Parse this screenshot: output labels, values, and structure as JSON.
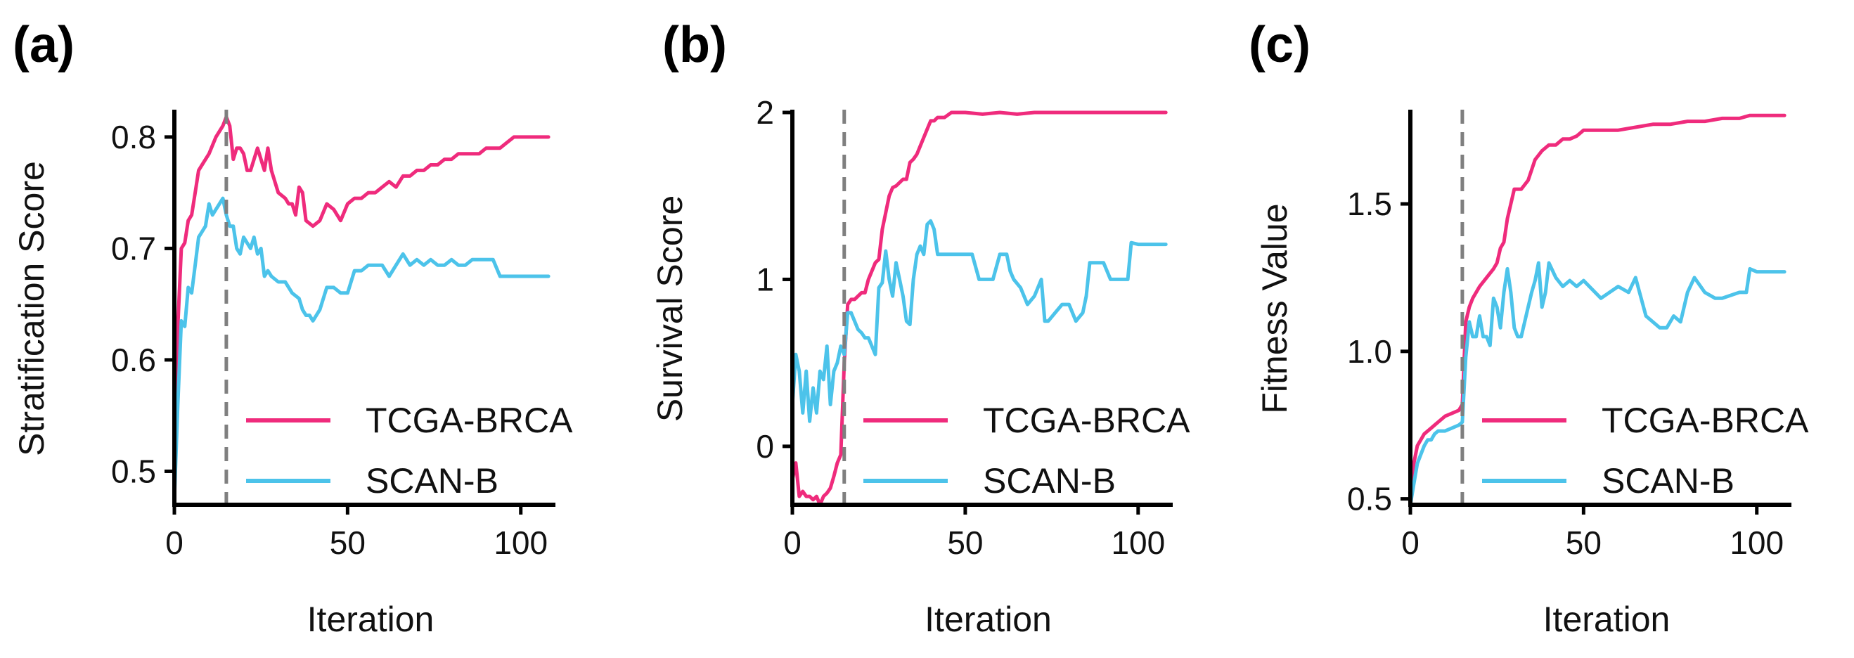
{
  "colors": {
    "tcga": "#ef2b7c",
    "scan": "#4cc3ea",
    "marker": "#7f7f7f"
  },
  "chart_data": [
    {
      "type": "line",
      "panel_label": "(a)",
      "title": "",
      "xlabel": "Iteration",
      "ylabel": "Stratification Score",
      "xlim": [
        0,
        110
      ],
      "ylim": [
        0.47,
        0.822
      ],
      "x_ticks": [
        0,
        50,
        100
      ],
      "y_ticks": [
        0.5,
        0.6,
        0.7,
        0.8
      ],
      "y_tick_labels": [
        "0.5",
        "0.6",
        "0.7",
        "0.8"
      ],
      "vertical_marker": 15,
      "legend": {
        "position": "bottom-right",
        "entries": [
          "TCGA-BRCA",
          "SCAN-B"
        ]
      },
      "series": [
        {
          "name": "TCGA-BRCA",
          "x": [
            0,
            1,
            2,
            3,
            4,
            5,
            6,
            7,
            8,
            10,
            12,
            14,
            15,
            16,
            17,
            18,
            19,
            20,
            21,
            22,
            23,
            24,
            25,
            26,
            27,
            28,
            30,
            32,
            33,
            34,
            35,
            36,
            37,
            38,
            40,
            42,
            44,
            46,
            48,
            50,
            52,
            54,
            56,
            58,
            60,
            62,
            64,
            66,
            68,
            70,
            72,
            74,
            76,
            78,
            80,
            82,
            84,
            86,
            88,
            90,
            92,
            94,
            96,
            98,
            100,
            103,
            108
          ],
          "values": [
            0.54,
            0.63,
            0.7,
            0.705,
            0.725,
            0.73,
            0.75,
            0.77,
            0.775,
            0.785,
            0.8,
            0.81,
            0.818,
            0.81,
            0.78,
            0.79,
            0.79,
            0.785,
            0.77,
            0.77,
            0.78,
            0.79,
            0.78,
            0.77,
            0.79,
            0.77,
            0.75,
            0.745,
            0.74,
            0.74,
            0.73,
            0.755,
            0.75,
            0.725,
            0.72,
            0.725,
            0.74,
            0.735,
            0.725,
            0.74,
            0.745,
            0.745,
            0.75,
            0.75,
            0.755,
            0.76,
            0.755,
            0.765,
            0.765,
            0.77,
            0.77,
            0.775,
            0.775,
            0.78,
            0.78,
            0.785,
            0.785,
            0.785,
            0.785,
            0.79,
            0.79,
            0.79,
            0.795,
            0.8,
            0.8,
            0.8,
            0.8
          ]
        },
        {
          "name": "SCAN-B",
          "x": [
            0,
            1,
            2,
            3,
            4,
            5,
            6,
            7,
            8,
            9,
            10,
            11,
            12,
            13,
            14,
            15,
            16,
            17,
            18,
            19,
            20,
            22,
            23,
            24,
            25,
            26,
            27,
            28,
            30,
            32,
            34,
            36,
            37,
            38,
            39,
            40,
            42,
            44,
            46,
            48,
            50,
            52,
            54,
            56,
            58,
            60,
            62,
            64,
            66,
            68,
            70,
            72,
            74,
            76,
            78,
            80,
            82,
            84,
            86,
            88,
            90,
            92,
            94,
            96,
            98,
            100,
            103,
            108
          ],
          "values": [
            0.475,
            0.56,
            0.635,
            0.63,
            0.665,
            0.66,
            0.685,
            0.71,
            0.715,
            0.72,
            0.74,
            0.73,
            0.735,
            0.74,
            0.745,
            0.73,
            0.72,
            0.72,
            0.7,
            0.695,
            0.71,
            0.7,
            0.71,
            0.695,
            0.7,
            0.675,
            0.68,
            0.675,
            0.67,
            0.67,
            0.66,
            0.655,
            0.645,
            0.64,
            0.64,
            0.635,
            0.645,
            0.665,
            0.665,
            0.66,
            0.66,
            0.68,
            0.68,
            0.685,
            0.685,
            0.685,
            0.675,
            0.685,
            0.695,
            0.685,
            0.69,
            0.685,
            0.69,
            0.685,
            0.685,
            0.69,
            0.685,
            0.685,
            0.69,
            0.69,
            0.69,
            0.69,
            0.675,
            0.675,
            0.675,
            0.675,
            0.675,
            0.675
          ]
        }
      ]
    },
    {
      "type": "line",
      "panel_label": "(b)",
      "title": "",
      "xlabel": "Iteration",
      "ylabel": "Survival Score",
      "xlim": [
        0,
        110
      ],
      "ylim": [
        -0.35,
        2.0
      ],
      "x_ticks": [
        0,
        50,
        100
      ],
      "y_ticks": [
        0,
        1,
        2
      ],
      "y_tick_labels": [
        "0",
        "1",
        "2"
      ],
      "vertical_marker": 15,
      "legend": {
        "position": "bottom-right",
        "entries": [
          "TCGA-BRCA",
          "SCAN-B"
        ]
      },
      "series": [
        {
          "name": "TCGA-BRCA",
          "x": [
            0,
            1,
            2,
            3,
            4,
            5,
            6,
            7,
            8,
            9,
            10,
            11,
            12,
            13,
            14,
            15,
            16,
            17,
            18,
            19,
            20,
            21,
            22,
            23,
            24,
            25,
            26,
            27,
            28,
            29,
            30,
            31,
            32,
            33,
            34,
            35,
            36,
            37,
            38,
            39,
            40,
            41,
            42,
            44,
            46,
            48,
            50,
            55,
            60,
            65,
            70,
            80,
            90,
            100,
            108
          ],
          "values": [
            -0.2,
            -0.1,
            -0.3,
            -0.27,
            -0.3,
            -0.3,
            -0.32,
            -0.3,
            -0.35,
            -0.3,
            -0.28,
            -0.25,
            -0.18,
            -0.1,
            -0.05,
            0.5,
            0.85,
            0.88,
            0.88,
            0.9,
            0.92,
            0.92,
            1.0,
            1.05,
            1.1,
            1.12,
            1.3,
            1.4,
            1.5,
            1.55,
            1.56,
            1.58,
            1.6,
            1.6,
            1.7,
            1.72,
            1.75,
            1.8,
            1.85,
            1.9,
            1.95,
            1.95,
            1.97,
            1.97,
            2.0,
            2.0,
            2.0,
            1.99,
            2.0,
            1.99,
            2.0,
            2.0,
            2.0,
            2.0,
            2.0
          ]
        },
        {
          "name": "SCAN-B",
          "x": [
            0,
            1,
            2,
            3,
            4,
            5,
            6,
            7,
            8,
            9,
            10,
            11,
            12,
            13,
            14,
            15,
            16,
            17,
            18,
            19,
            20,
            21,
            22,
            23,
            24,
            25,
            26,
            27,
            28,
            29,
            30,
            31,
            32,
            33,
            34,
            35,
            36,
            37,
            38,
            39,
            40,
            41,
            42,
            43,
            44,
            46,
            48,
            50,
            52,
            54,
            55,
            56,
            58,
            60,
            62,
            63,
            64,
            66,
            68,
            70,
            72,
            73,
            74,
            76,
            78,
            80,
            82,
            84,
            85,
            86,
            88,
            90,
            92,
            94,
            96,
            97,
            98,
            100,
            103,
            108
          ],
          "values": [
            0.25,
            0.55,
            0.45,
            0.2,
            0.45,
            0.15,
            0.35,
            0.2,
            0.45,
            0.4,
            0.6,
            0.25,
            0.45,
            0.5,
            0.6,
            0.55,
            0.8,
            0.8,
            0.75,
            0.7,
            0.68,
            0.65,
            0.65,
            0.6,
            0.55,
            0.95,
            0.98,
            1.17,
            1.0,
            0.9,
            1.1,
            1.0,
            0.9,
            0.75,
            0.73,
            1.0,
            1.15,
            1.2,
            1.15,
            1.33,
            1.35,
            1.3,
            1.15,
            1.15,
            1.15,
            1.15,
            1.15,
            1.15,
            1.15,
            1.0,
            1.0,
            1.0,
            1.0,
            1.15,
            1.15,
            1.05,
            1.0,
            0.95,
            0.85,
            0.9,
            1.0,
            0.75,
            0.75,
            0.8,
            0.85,
            0.85,
            0.75,
            0.8,
            0.9,
            1.1,
            1.1,
            1.1,
            1.0,
            1.0,
            1.0,
            1.0,
            1.22,
            1.21,
            1.21,
            1.21
          ]
        }
      ]
    },
    {
      "type": "line",
      "panel_label": "(c)",
      "title": "",
      "xlabel": "Iteration",
      "ylabel": "Fitness Value",
      "xlim": [
        0,
        110
      ],
      "ylim": [
        0.48,
        1.81
      ],
      "x_ticks": [
        0,
        50,
        100
      ],
      "y_ticks": [
        0.5,
        1.0,
        1.5
      ],
      "y_tick_labels": [
        "0.5",
        "1.0",
        "1.5"
      ],
      "vertical_marker": 15,
      "legend": {
        "position": "bottom-right",
        "entries": [
          "TCGA-BRCA",
          "SCAN-B"
        ]
      },
      "series": [
        {
          "name": "TCGA-BRCA",
          "x": [
            0,
            1,
            2,
            3,
            4,
            5,
            6,
            7,
            8,
            10,
            12,
            14,
            15,
            16,
            17,
            18,
            19,
            20,
            22,
            24,
            25,
            26,
            27,
            28,
            29,
            30,
            32,
            34,
            36,
            38,
            40,
            42,
            44,
            46,
            48,
            50,
            55,
            60,
            65,
            70,
            75,
            80,
            85,
            90,
            95,
            98,
            100,
            108
          ],
          "values": [
            0.48,
            0.62,
            0.68,
            0.7,
            0.72,
            0.73,
            0.74,
            0.75,
            0.76,
            0.78,
            0.79,
            0.8,
            0.82,
            1.1,
            1.15,
            1.18,
            1.2,
            1.22,
            1.25,
            1.28,
            1.3,
            1.35,
            1.37,
            1.45,
            1.5,
            1.55,
            1.55,
            1.58,
            1.65,
            1.68,
            1.7,
            1.7,
            1.72,
            1.72,
            1.73,
            1.75,
            1.75,
            1.75,
            1.76,
            1.77,
            1.77,
            1.78,
            1.78,
            1.79,
            1.79,
            1.8,
            1.8,
            1.8
          ]
        },
        {
          "name": "SCAN-B",
          "x": [
            0,
            1,
            2,
            3,
            4,
            5,
            6,
            7,
            8,
            10,
            12,
            14,
            15,
            16,
            17,
            18,
            19,
            20,
            21,
            22,
            23,
            24,
            25,
            26,
            27,
            28,
            29,
            30,
            31,
            32,
            33,
            34,
            35,
            36,
            37,
            38,
            39,
            40,
            42,
            44,
            46,
            48,
            50,
            55,
            60,
            63,
            65,
            68,
            70,
            72,
            74,
            76,
            78,
            80,
            82,
            85,
            88,
            90,
            95,
            97,
            98,
            100,
            108
          ],
          "values": [
            0.48,
            0.55,
            0.62,
            0.65,
            0.68,
            0.7,
            0.7,
            0.72,
            0.73,
            0.73,
            0.74,
            0.75,
            0.76,
            0.98,
            1.1,
            1.05,
            1.05,
            1.12,
            1.05,
            1.05,
            1.02,
            1.18,
            1.15,
            1.08,
            1.2,
            1.28,
            1.2,
            1.08,
            1.05,
            1.05,
            1.1,
            1.15,
            1.2,
            1.24,
            1.3,
            1.15,
            1.2,
            1.3,
            1.25,
            1.22,
            1.24,
            1.22,
            1.24,
            1.18,
            1.22,
            1.2,
            1.25,
            1.12,
            1.1,
            1.08,
            1.08,
            1.12,
            1.1,
            1.2,
            1.25,
            1.2,
            1.18,
            1.18,
            1.2,
            1.2,
            1.28,
            1.27,
            1.27
          ]
        }
      ]
    }
  ]
}
